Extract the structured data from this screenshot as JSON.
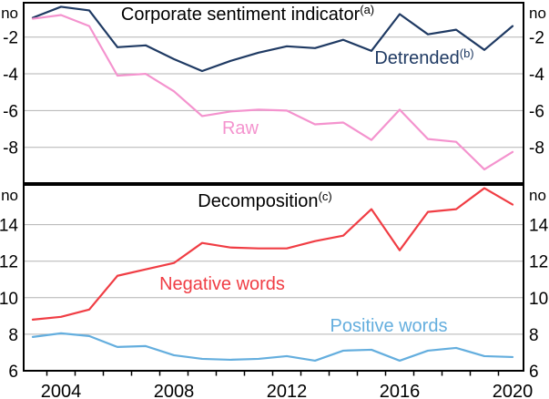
{
  "figure_name": "corporate-sentiment-indicator-chart",
  "chart_data": [
    {
      "type": "line",
      "panel": "top",
      "title": "Corporate sentiment indicator",
      "title_superscript": "(a)",
      "unit_label": "no",
      "x": [
        2003,
        2004,
        2005,
        2006,
        2007,
        2008,
        2009,
        2010,
        2011,
        2012,
        2013,
        2014,
        2015,
        2016,
        2017,
        2018,
        2019,
        2020
      ],
      "ylim": [
        -10,
        0
      ],
      "yticks": [
        -2,
        -4,
        -6,
        -8
      ],
      "grid": true,
      "series": [
        {
          "name": "Detrended",
          "superscript": "(b)",
          "color": "#1f3a63",
          "values": [
            -0.95,
            -0.35,
            -0.55,
            -2.55,
            -2.45,
            -3.2,
            -3.85,
            -3.3,
            -2.85,
            -2.5,
            -2.6,
            -2.15,
            -2.75,
            -0.75,
            -1.85,
            -1.6,
            -2.7,
            -1.4
          ]
        },
        {
          "name": "Raw",
          "superscript": "",
          "color": "#f493ce",
          "values": [
            -1.0,
            -0.8,
            -1.4,
            -4.1,
            -4.0,
            -4.95,
            -6.3,
            -6.05,
            -5.95,
            -6.0,
            -6.75,
            -6.65,
            -7.6,
            -5.95,
            -7.55,
            -7.7,
            -9.2,
            -8.25
          ]
        }
      ]
    },
    {
      "type": "line",
      "panel": "bottom",
      "title": "Decomposition",
      "title_superscript": "(c)",
      "unit_label": "no",
      "x": [
        2003,
        2004,
        2005,
        2006,
        2007,
        2008,
        2009,
        2010,
        2011,
        2012,
        2013,
        2014,
        2015,
        2016,
        2017,
        2018,
        2019,
        2020
      ],
      "ylim": [
        6,
        16
      ],
      "yticks": [
        14,
        12,
        10,
        8,
        6
      ],
      "grid": true,
      "xtick_labels": [
        "2004",
        "2008",
        "2012",
        "2016",
        "2020"
      ],
      "series": [
        {
          "name": "Negative words",
          "superscript": "",
          "color": "#f03d44",
          "values": [
            8.8,
            8.95,
            9.35,
            11.2,
            11.55,
            11.9,
            13.0,
            12.75,
            12.7,
            12.7,
            13.1,
            13.4,
            14.85,
            12.6,
            14.7,
            14.85,
            16.0,
            15.1
          ]
        },
        {
          "name": "Positive words",
          "superscript": "",
          "color": "#64aede",
          "values": [
            7.85,
            8.05,
            7.9,
            7.3,
            7.35,
            6.85,
            6.65,
            6.6,
            6.65,
            6.8,
            6.55,
            7.1,
            7.15,
            6.55,
            7.1,
            7.25,
            6.8,
            6.75
          ]
        }
      ]
    }
  ],
  "colors": {
    "gridline": "#b3b3b3",
    "axis": "#000000",
    "background": "#ffffff"
  }
}
